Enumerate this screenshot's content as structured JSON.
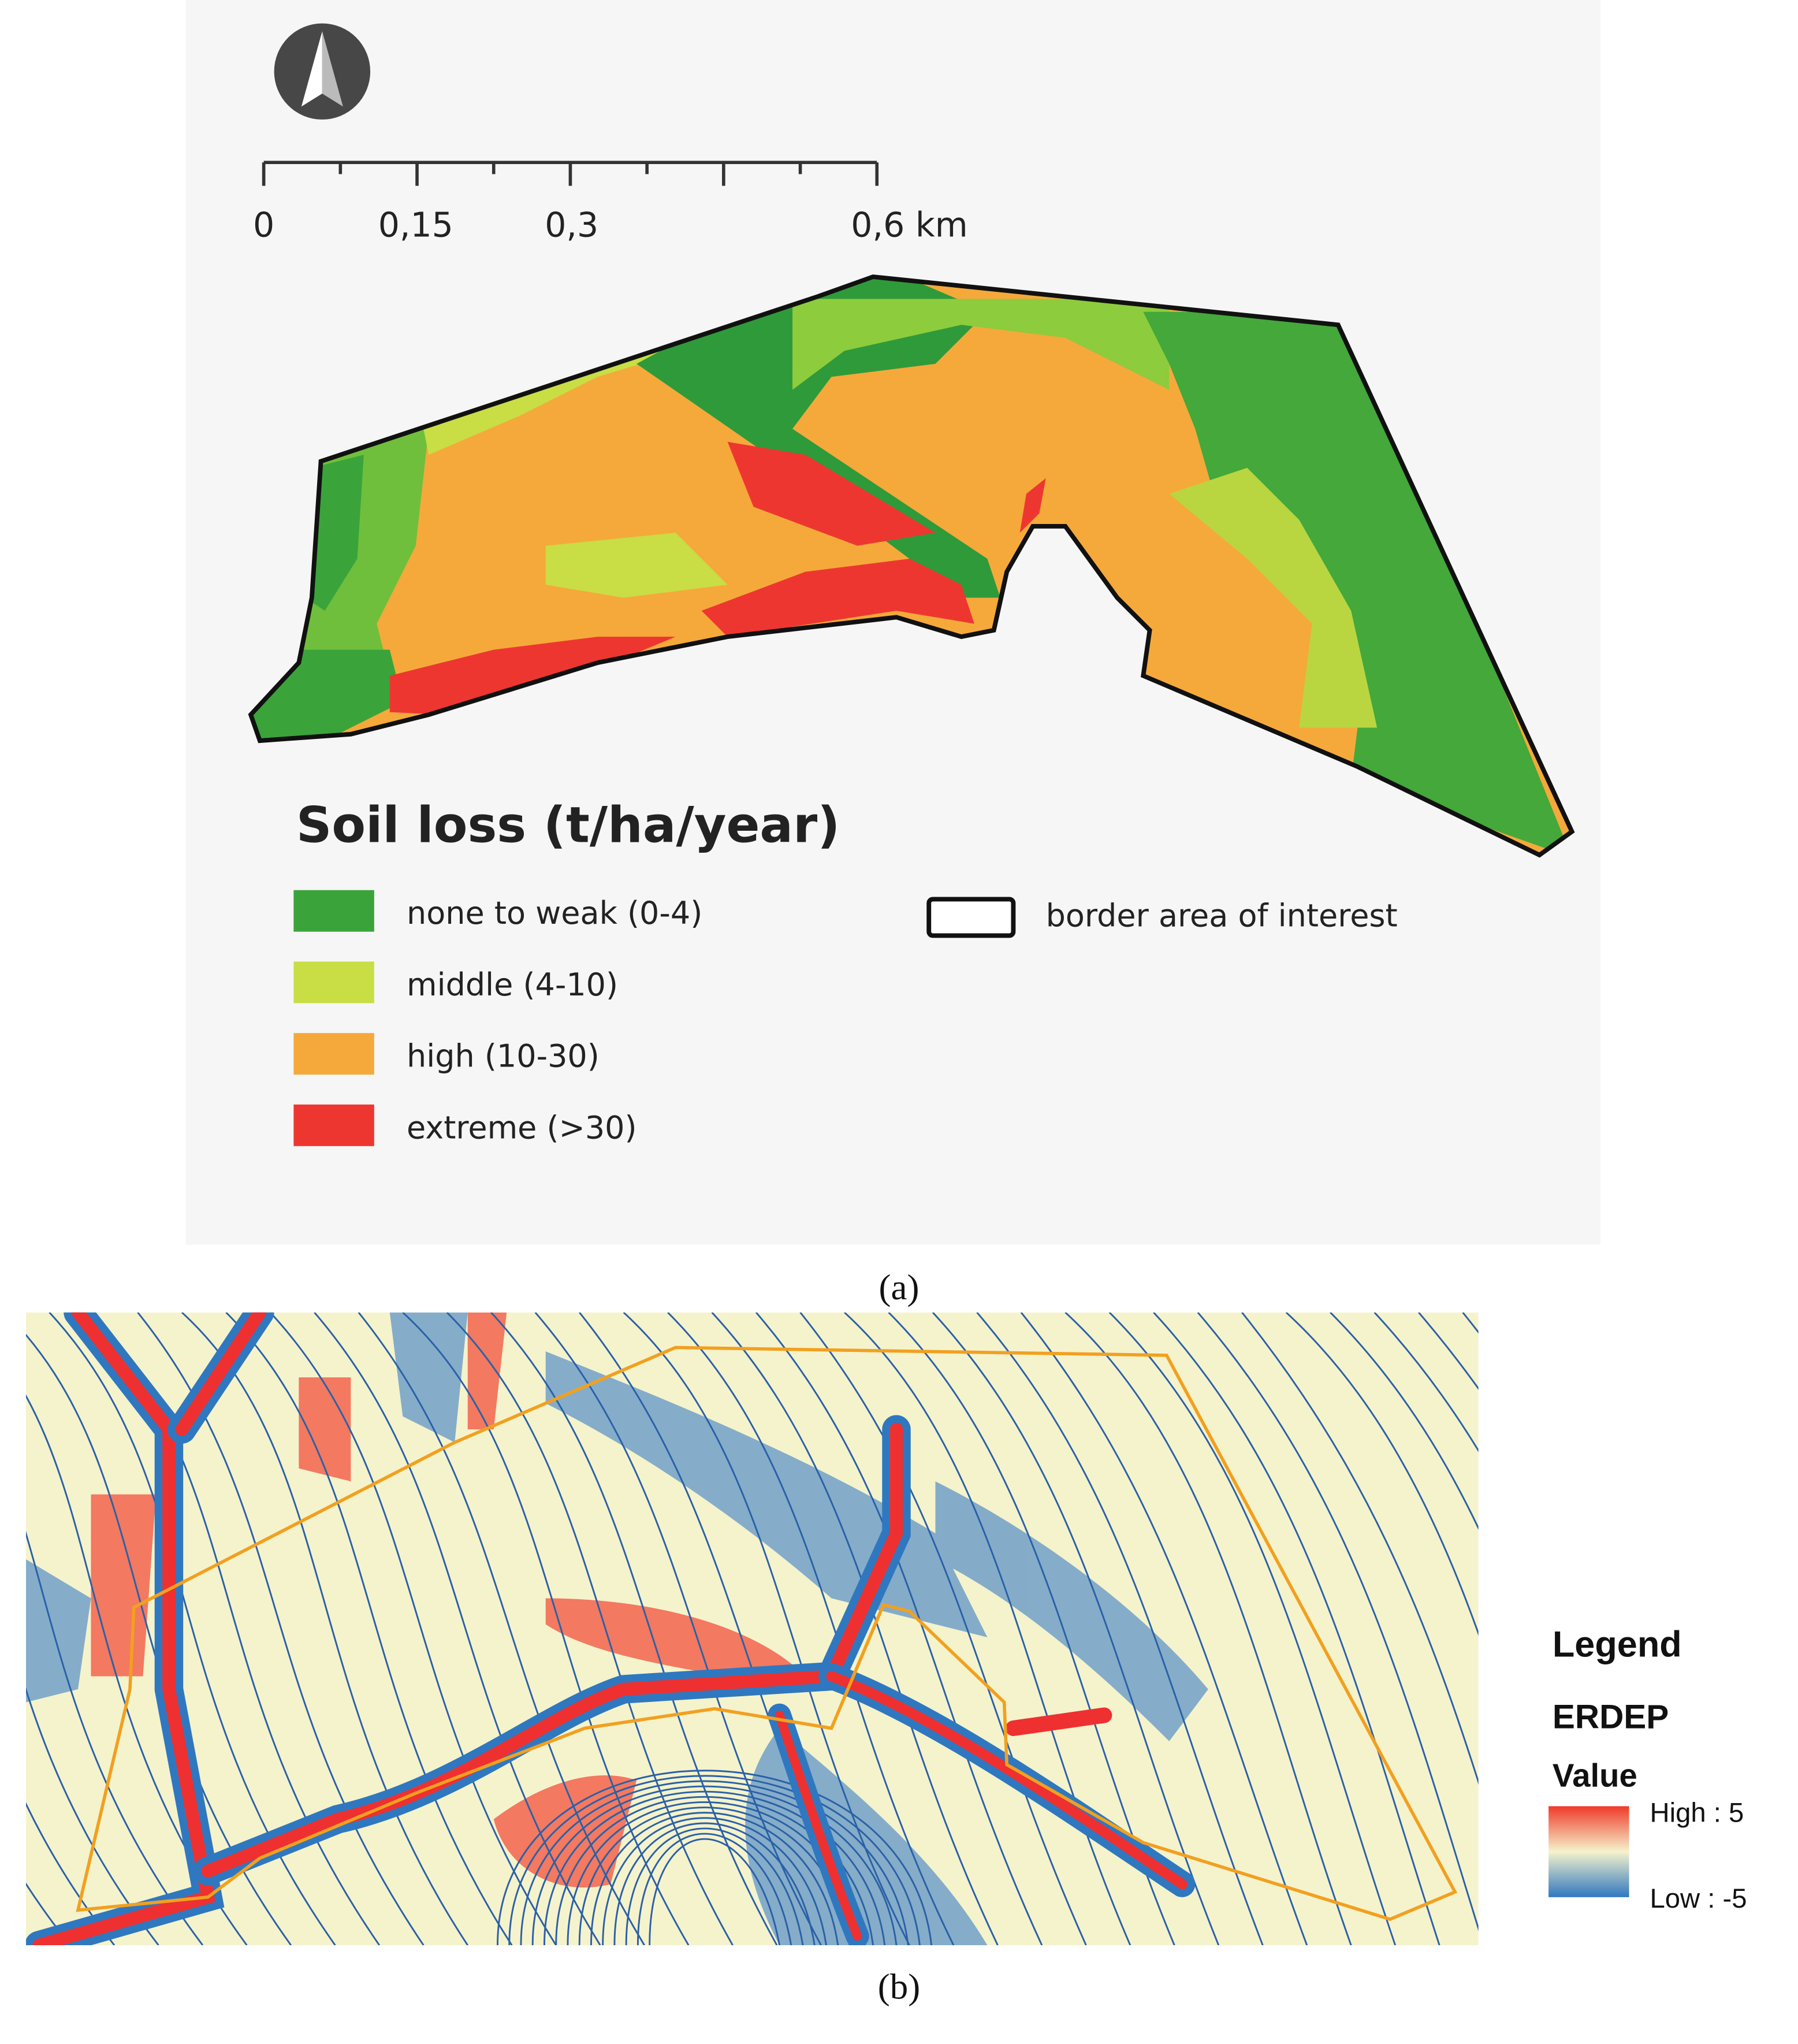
{
  "panel_a": {
    "scale_bar": [
      "0",
      "0,15",
      "0,3",
      "0,6 km"
    ],
    "legend": {
      "title": "Soil loss (t/ha/year)",
      "items": [
        "none to weak (0-4)",
        "middle (4-10)",
        "high (10-30)",
        "extreme (>30)"
      ],
      "border": "border area of interest"
    },
    "caption": "(a)"
  },
  "panel_b": {
    "legend": {
      "title": "Legend",
      "layer": "ERDEP",
      "field": "Value",
      "high": "High : 5",
      "low": "Low : -5"
    },
    "caption": "(b)"
  }
}
